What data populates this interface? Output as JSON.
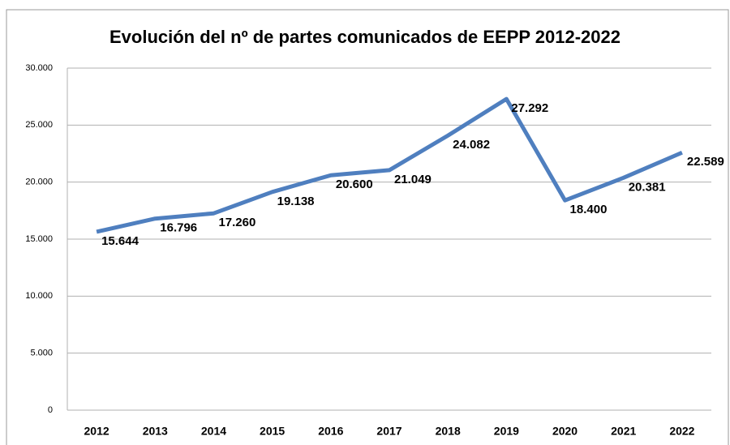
{
  "chart_data": {
    "type": "line",
    "title": "Evolución del nº de partes comunicados de EEPP 2012-2022",
    "categories": [
      "2012",
      "2013",
      "2014",
      "2015",
      "2016",
      "2017",
      "2018",
      "2019",
      "2020",
      "2021",
      "2022"
    ],
    "values": [
      15644,
      16796,
      17260,
      19138,
      20600,
      21049,
      24082,
      27292,
      18400,
      20381,
      22589
    ],
    "value_labels": [
      "15.644",
      "16.796",
      "17.260",
      "19.138",
      "20.600",
      "21.049",
      "24.082",
      "27.292",
      "18.400",
      "20.381",
      "22.589"
    ],
    "color": "#4f7fbf",
    "ylim": [
      0,
      30000
    ],
    "yticks": [
      0,
      {
        "value": 5000,
        "label": "5.000"
      },
      {
        "value": 10000,
        "label": "10.000"
      },
      {
        "value": 15000,
        "label": "15.000"
      },
      {
        "value": 20000,
        "label": "20.000"
      },
      {
        "value": 25000,
        "label": "25.000"
      },
      {
        "value": 30000,
        "label": "30.000"
      }
    ],
    "grid": true
  }
}
